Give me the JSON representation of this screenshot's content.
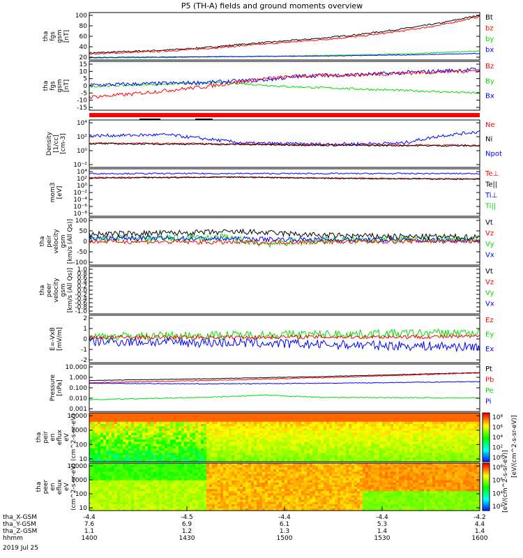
{
  "title": "P5 (TH-A) fields and ground moments overview",
  "colors": {
    "black": "#000000",
    "red": "#ff0000",
    "green": "#00dd00",
    "blue": "#0000ff"
  },
  "chart_data": {
    "type": "line",
    "x_ticks": [
      "1400",
      "1430",
      "1500",
      "1530",
      "1600"
    ],
    "footer": {
      "rows": [
        {
          "label": "tha_X-GSM",
          "values": [
            "-4.4",
            "-4.5",
            "-4.4",
            "-4.4",
            "-4.2"
          ]
        },
        {
          "label": "tha_Y-GSM",
          "values": [
            "7.6",
            "6.9",
            "6.1",
            "5.3",
            "4.4"
          ]
        },
        {
          "label": "tha_Z-GSM",
          "values": [
            "1.1",
            "1.2",
            "1.3",
            "1.4",
            "1.4"
          ]
        },
        {
          "label": "hhmm",
          "values": [
            "1400",
            "1430",
            "1500",
            "1530",
            "1600"
          ]
        }
      ],
      "date": "2019 Jul 25"
    },
    "panels": [
      {
        "id": "fgs-btot",
        "ylabel": [
          "tha",
          "fgs",
          "gsm",
          "[nT]"
        ],
        "ylim": [
          10,
          105
        ],
        "ticks": [
          "100",
          "80",
          "60",
          "40",
          "20"
        ],
        "legend": [
          {
            "label": "Bt",
            "color": "black"
          },
          {
            "label": "bz",
            "color": "red"
          },
          {
            "label": "by",
            "color": "green"
          },
          {
            "label": "bx",
            "color": "blue"
          }
        ],
        "series": [
          {
            "name": "Bt",
            "color": "black",
            "x": [
              0,
              0.1,
              0.2,
              0.3,
              0.4,
              0.5,
              0.6,
              0.7,
              0.8,
              0.9,
              1
            ],
            "y": [
              24,
              27,
              30,
              35,
              42,
              48,
              54,
              62,
              72,
              84,
              100
            ],
            "noise": 1.5
          },
          {
            "name": "bz",
            "color": "red",
            "x": [
              0,
              0.1,
              0.2,
              0.3,
              0.4,
              0.5,
              0.6,
              0.7,
              0.8,
              0.9,
              1
            ],
            "y": [
              22,
              25,
              28,
              33,
              39,
              45,
              51,
              58,
              68,
              80,
              97
            ],
            "noise": 1.5
          },
          {
            "name": "by",
            "color": "green",
            "x": [
              0,
              0.2,
              0.4,
              0.6,
              0.8,
              1
            ],
            "y": [
              14,
              15,
              17,
              19,
              22,
              28
            ],
            "noise": 0.6
          },
          {
            "name": "bx",
            "color": "blue",
            "x": [
              0,
              0.2,
              0.4,
              0.6,
              0.8,
              1
            ],
            "y": [
              15,
              16,
              17,
              18,
              20,
              23
            ],
            "noise": 0.6
          }
        ]
      },
      {
        "id": "fgs-components",
        "ylabel": [
          "tha",
          "fgs",
          "gsm",
          "[nT]"
        ],
        "ylim": [
          -20,
          17
        ],
        "ticks": [
          "15",
          "10",
          "5",
          "0",
          "-5",
          "-10",
          "-15"
        ],
        "legend": [
          {
            "label": "Bz",
            "color": "red"
          },
          {
            "label": "By",
            "color": "green"
          },
          {
            "label": "Bx",
            "color": "blue"
          }
        ],
        "series": [
          {
            "name": "By",
            "color": "green",
            "x": [
              0,
              0.2,
              0.35,
              0.5,
              0.7,
              1
            ],
            "y": [
              -2,
              0,
              1,
              -2,
              -4,
              -7
            ],
            "noise": 0.8
          },
          {
            "name": "Bx",
            "color": "blue",
            "x": [
              0,
              0.15,
              0.3,
              0.45,
              0.55,
              0.7,
              1
            ],
            "y": [
              -1,
              0,
              1,
              3,
              6,
              7,
              11
            ],
            "noise": 1.5
          },
          {
            "name": "Bz",
            "color": "red",
            "x": [
              0,
              0.1,
              0.2,
              0.3,
              0.45,
              0.55,
              0.7,
              1
            ],
            "y": [
              -10,
              -8,
              -5,
              -2,
              4,
              6,
              7,
              10
            ],
            "noise": 1.4
          }
        ]
      },
      {
        "id": "density",
        "ylabel": [
          "Density",
          "[1/cc]",
          "[cm-3]"
        ],
        "ylim": [
          -4,
          5
        ],
        "log": true,
        "ticks": [
          "10⁴",
          "10²",
          "10⁰",
          "10⁻²"
        ],
        "legend": [
          {
            "label": "Ne",
            "color": "red"
          },
          {
            "label": "Ni",
            "color": "black"
          },
          {
            "label": "Npot",
            "color": "blue"
          }
        ],
        "series": [
          {
            "name": "Npot",
            "color": "blue",
            "x": [
              0,
              0.2,
              0.4,
              0.6,
              0.8,
              0.9,
              1
            ],
            "y": [
              2,
              2.2,
              0.6,
              0.4,
              0.6,
              2,
              2.8
            ],
            "noise": 0.3
          },
          {
            "name": "Ne",
            "color": "red",
            "x": [
              0,
              0.3,
              0.6,
              1
            ],
            "y": [
              0.6,
              0.5,
              0.3,
              0.2
            ],
            "noise": 0.15
          },
          {
            "name": "Ni",
            "color": "black",
            "x": [
              0,
              0.3,
              0.6,
              1
            ],
            "y": [
              0.5,
              0.4,
              0.2,
              0.1
            ],
            "noise": 0.15
          }
        ]
      },
      {
        "id": "temperature",
        "ylabel": [
          "mom3",
          "[eV]"
        ],
        "ylim": [
          -9,
          5
        ],
        "log": true,
        "ticks": [
          "10⁴",
          "10²",
          "10⁰",
          "10⁻²",
          "10⁻⁴",
          "10⁻⁶",
          "10⁻⁸"
        ],
        "legend": [
          {
            "label": "Te⊥",
            "color": "red"
          },
          {
            "label": "Te||",
            "color": "black"
          },
          {
            "label": "Ti⊥",
            "color": "blue"
          },
          {
            "label": "Ti||",
            "color": "green"
          }
        ],
        "series": [
          {
            "name": "Ti",
            "color": "blue",
            "x": [
              0,
              1
            ],
            "y": [
              3.6,
              3.6
            ],
            "noise": 0.2
          },
          {
            "name": "Te",
            "color": "red",
            "x": [
              0,
              0.4,
              0.6,
              1
            ],
            "y": [
              2.4,
              2.6,
              2.3,
              2.0
            ],
            "noise": 0.15
          },
          {
            "name": "Tepar",
            "color": "black",
            "x": [
              0,
              0.4,
              0.6,
              1
            ],
            "y": [
              2.3,
              2.5,
              2.2,
              1.9
            ],
            "noise": 0.15
          }
        ]
      },
      {
        "id": "peir-velocity",
        "ylabel": [
          "tha",
          "peir",
          "velocity",
          "gsm",
          "[km/s (All Qs)]"
        ],
        "ylim": [
          -100,
          100
        ],
        "ticks": [
          "100",
          "50",
          "0",
          "-50",
          "-100"
        ],
        "legend": [
          {
            "label": "Vt",
            "color": "black"
          },
          {
            "label": "Vz",
            "color": "red"
          },
          {
            "label": "Vy",
            "color": "green"
          },
          {
            "label": "Vx",
            "color": "blue"
          }
        ],
        "series": [
          {
            "name": "Vy",
            "color": "green",
            "x": [
              0,
              0.35,
              0.45,
              0.6,
              1
            ],
            "y": [
              10,
              15,
              -10,
              5,
              8
            ],
            "noise": 16
          },
          {
            "name": "Vx",
            "color": "blue",
            "x": [
              0,
              0.4,
              0.8,
              1
            ],
            "y": [
              15,
              10,
              5,
              5
            ],
            "noise": 10
          },
          {
            "name": "Vz",
            "color": "red",
            "x": [
              0,
              0.4,
              0.8,
              1
            ],
            "y": [
              0,
              -5,
              0,
              0
            ],
            "noise": 9
          },
          {
            "name": "Vt",
            "color": "black",
            "x": [
              0,
              0.2,
              0.4,
              0.6,
              0.8,
              1
            ],
            "y": [
              30,
              35,
              40,
              25,
              20,
              18
            ],
            "noise": 12
          }
        ]
      },
      {
        "id": "peer-velocity",
        "ylabel": [
          "tha",
          "peer",
          "velocity",
          "gsm",
          "[km/s (All Qs)]"
        ],
        "ylim": [
          -1,
          1
        ],
        "ticks": [
          "1.0",
          "0.8",
          "0.6",
          "0.4",
          "0.2",
          "0.0",
          "-0.2",
          "-0.4",
          "-0.6",
          "-0.8",
          "-1.0"
        ],
        "legend": [
          {
            "label": "Vt",
            "color": "black"
          },
          {
            "label": "Vz",
            "color": "red"
          },
          {
            "label": "Vy",
            "color": "green"
          },
          {
            "label": "Vx",
            "color": "blue"
          }
        ],
        "series": []
      },
      {
        "id": "efield",
        "ylabel": [
          "E=-VxB",
          "[mV/m]"
        ],
        "ylim": [
          -3,
          3
        ],
        "ticks": [
          "2",
          "1",
          "0",
          "-1",
          "-2"
        ],
        "legend": [
          {
            "label": "Ez",
            "color": "red"
          },
          {
            "label": "Ey",
            "color": "green"
          },
          {
            "label": "Ex",
            "color": "blue"
          }
        ],
        "series": [
          {
            "name": "Ey",
            "color": "green",
            "x": [
              0,
              0.4,
              0.6,
              1
            ],
            "y": [
              0.3,
              0.5,
              0.6,
              0.8
            ],
            "noise": 0.55
          },
          {
            "name": "Ex",
            "color": "blue",
            "x": [
              0,
              0.4,
              0.6,
              1
            ],
            "y": [
              -0.3,
              -0.5,
              -0.7,
              -1.0
            ],
            "noise": 0.6
          },
          {
            "name": "Ez",
            "color": "red",
            "x": [
              0,
              1
            ],
            "y": [
              0.2,
              0.3
            ],
            "noise": 0.25
          }
        ]
      },
      {
        "id": "pressure",
        "ylabel": [
          "Pressure",
          "[nPa]"
        ],
        "ylim": [
          -3,
          1.2
        ],
        "log": true,
        "ticks": [
          "10.000",
          "1.000",
          "0.100",
          "0.010",
          "0.001"
        ],
        "legend": [
          {
            "label": "Pt",
            "color": "black"
          },
          {
            "label": "Pb",
            "color": "red"
          },
          {
            "label": "Pe",
            "color": "green"
          },
          {
            "label": "Pi",
            "color": "blue"
          }
        ],
        "series": [
          {
            "name": "Pt",
            "color": "black",
            "x": [
              0,
              0.3,
              0.6,
              1
            ],
            "y": [
              -0.25,
              -0.1,
              0.1,
              0.45
            ],
            "noise": 0.02
          },
          {
            "name": "Pb",
            "color": "red",
            "x": [
              0,
              0.3,
              0.6,
              1
            ],
            "y": [
              -0.45,
              -0.25,
              0.0,
              0.42
            ],
            "noise": 0.03
          },
          {
            "name": "Pi",
            "color": "blue",
            "x": [
              0,
              0.3,
              0.6,
              1
            ],
            "y": [
              -0.5,
              -0.55,
              -0.5,
              -0.35
            ],
            "noise": 0.03
          },
          {
            "name": "Pe",
            "color": "green",
            "x": [
              0,
              0.3,
              0.45,
              0.6,
              1
            ],
            "y": [
              -1.95,
              -1.75,
              -1.55,
              -1.75,
              -1.8
            ],
            "noise": 0.04
          }
        ]
      },
      {
        "id": "peir-eflux",
        "type": "heatmap",
        "ylabel": [
          "tha",
          "peir",
          "en",
          "eflux",
          "eV",
          "(cm^2-s-sr-eV)"
        ],
        "ticks": [
          "10000",
          "1000",
          "100",
          "10"
        ],
        "cbar_ticks": [
          "10⁸",
          "10⁶",
          "10⁴",
          "10²",
          "10⁰"
        ]
      },
      {
        "id": "peer-eflux",
        "type": "heatmap",
        "ylabel": [
          "tha",
          "peer",
          "en",
          "eflux",
          "eV",
          "(cm^2-s-sr-eV)"
        ],
        "ticks": [
          "10000",
          "1000",
          "100",
          "10"
        ],
        "cbar_ticks": [
          "10⁸",
          "10⁶",
          "10⁴",
          "10²"
        ]
      }
    ],
    "colorbar_label": "[eV/(cm^2-s-sr-eV)]",
    "colorbar_label2": "[eV/(cm^2-s-sr-eV)]",
    "qflag_bar": "red"
  }
}
